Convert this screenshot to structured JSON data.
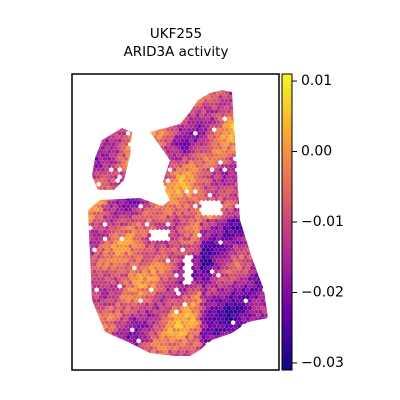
{
  "chart_data": {
    "type": "heatmap",
    "title": "UKF255",
    "subtitle": "ARID3A activity",
    "xlabel": "",
    "ylabel": "",
    "colormap": "plasma",
    "colorbar": {
      "range": [
        -0.031,
        0.011
      ],
      "ticks": [
        0.01,
        0.0,
        -0.01,
        -0.02,
        -0.03
      ],
      "tick_labels": [
        "0.01",
        "0.00",
        "−0.01",
        "−0.02",
        "−0.03"
      ]
    },
    "plasma_stops": [
      "#0d0887",
      "#6a00a8",
      "#b12a90",
      "#e16462",
      "#fca636",
      "#f0f921"
    ],
    "grid": false,
    "axes_ticks": false
  }
}
